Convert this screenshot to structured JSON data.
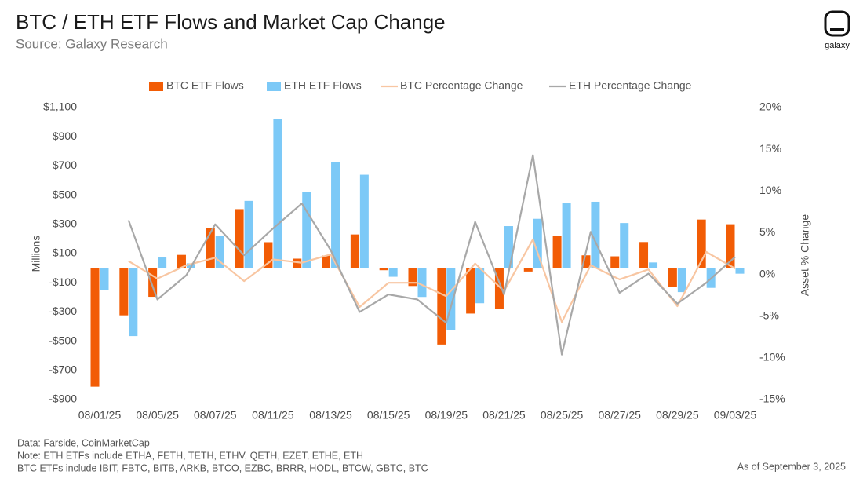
{
  "chart_data": {
    "type": "bar",
    "title": "BTC / ETH ETF Flows and Market Cap Change",
    "subtitle": "Source: Galaxy Research",
    "brand": "galaxy",
    "y_label": "Millions",
    "y2_label": "Asset % Change",
    "notes": [
      "Data: Farside, CoinMarketCap",
      "Note: ETH ETFs include ETHA, FETH, TETH, ETHV, QETH, EZET, ETHE, ETH",
      "BTC ETFs include IBIT, FBTC, BITB, ARKB, BTCO, EZBC, BRRR, HODL, BTCW, GBTC, BTC"
    ],
    "date_note": "As of September 3, 2025",
    "categories": [
      "08/01/25",
      null,
      "08/05/25",
      null,
      "08/07/25",
      null,
      "08/11/25",
      null,
      "08/13/25",
      null,
      "08/15/25",
      null,
      "08/19/25",
      null,
      "08/21/25",
      null,
      "08/25/25",
      null,
      "08/27/25",
      null,
      "08/29/25",
      null,
      "09/03/25"
    ],
    "ylim": [
      -900,
      1100
    ],
    "yticks": [
      {
        "value": -900,
        "label": "-$900"
      },
      {
        "value": -700,
        "label": "-$700"
      },
      {
        "value": -500,
        "label": "-$500"
      },
      {
        "value": -300,
        "label": "-$300"
      },
      {
        "value": -100,
        "label": "-$100"
      },
      {
        "value": 100,
        "label": "$100"
      },
      {
        "value": 300,
        "label": "$300"
      },
      {
        "value": 500,
        "label": "$500"
      },
      {
        "value": 700,
        "label": "$700"
      },
      {
        "value": 900,
        "label": "$900"
      },
      {
        "value": 1100,
        "label": "$1,100"
      }
    ],
    "y2lim": [
      -15,
      20
    ],
    "y2ticks": [
      {
        "value": -15,
        "label": "-15%"
      },
      {
        "value": -10,
        "label": "-10%"
      },
      {
        "value": -5,
        "label": "-5%"
      },
      {
        "value": 0,
        "label": "0%"
      },
      {
        "value": 5,
        "label": "5%"
      },
      {
        "value": 10,
        "label": "10%"
      },
      {
        "value": 15,
        "label": "15%"
      },
      {
        "value": 20,
        "label": "20%"
      }
    ],
    "grid": false,
    "legend": "top",
    "series": [
      {
        "name": "BTC ETF Flows",
        "type": "bar",
        "color": "#f25c05",
        "values": [
          -812,
          -323,
          -196,
          91,
          277,
          404,
          178,
          65,
          86,
          231,
          -14,
          -122,
          -523,
          -311,
          -280,
          -23,
          219,
          88,
          81,
          179,
          -126,
          333,
          301
        ]
      },
      {
        "name": "ETH ETF Flows",
        "type": "bar",
        "color": "#7cc9f7",
        "values": [
          -152,
          -465,
          73,
          33,
          222,
          461,
          1020,
          524,
          727,
          640,
          -59,
          -197,
          -422,
          -240,
          288,
          338,
          444,
          455,
          309,
          39,
          -164,
          -135,
          -38
        ]
      },
      {
        "name": "BTC Percentage Change",
        "type": "line",
        "axis": "y2",
        "color": "#f8c6a2",
        "values": [
          null,
          1.6,
          -0.5,
          1.1,
          2.0,
          -0.8,
          1.8,
          1.4,
          2.4,
          -3.9,
          -1.0,
          -1.0,
          -2.6,
          1.3,
          -2.0,
          4.2,
          -5.7,
          1.1,
          -0.6,
          0.6,
          -3.8,
          2.7,
          0.7
        ]
      },
      {
        "name": "ETH Percentage Change",
        "type": "line",
        "axis": "y2",
        "color": "#a8a8a8",
        "values": [
          null,
          6.5,
          -3.0,
          -0.1,
          6.0,
          2.3,
          5.5,
          8.5,
          2.9,
          -4.5,
          -2.4,
          -3.0,
          -5.8,
          6.3,
          -2.4,
          14.3,
          -9.6,
          5.1,
          -2.2,
          0.1,
          -3.5,
          -1.0,
          2.1
        ]
      }
    ]
  }
}
